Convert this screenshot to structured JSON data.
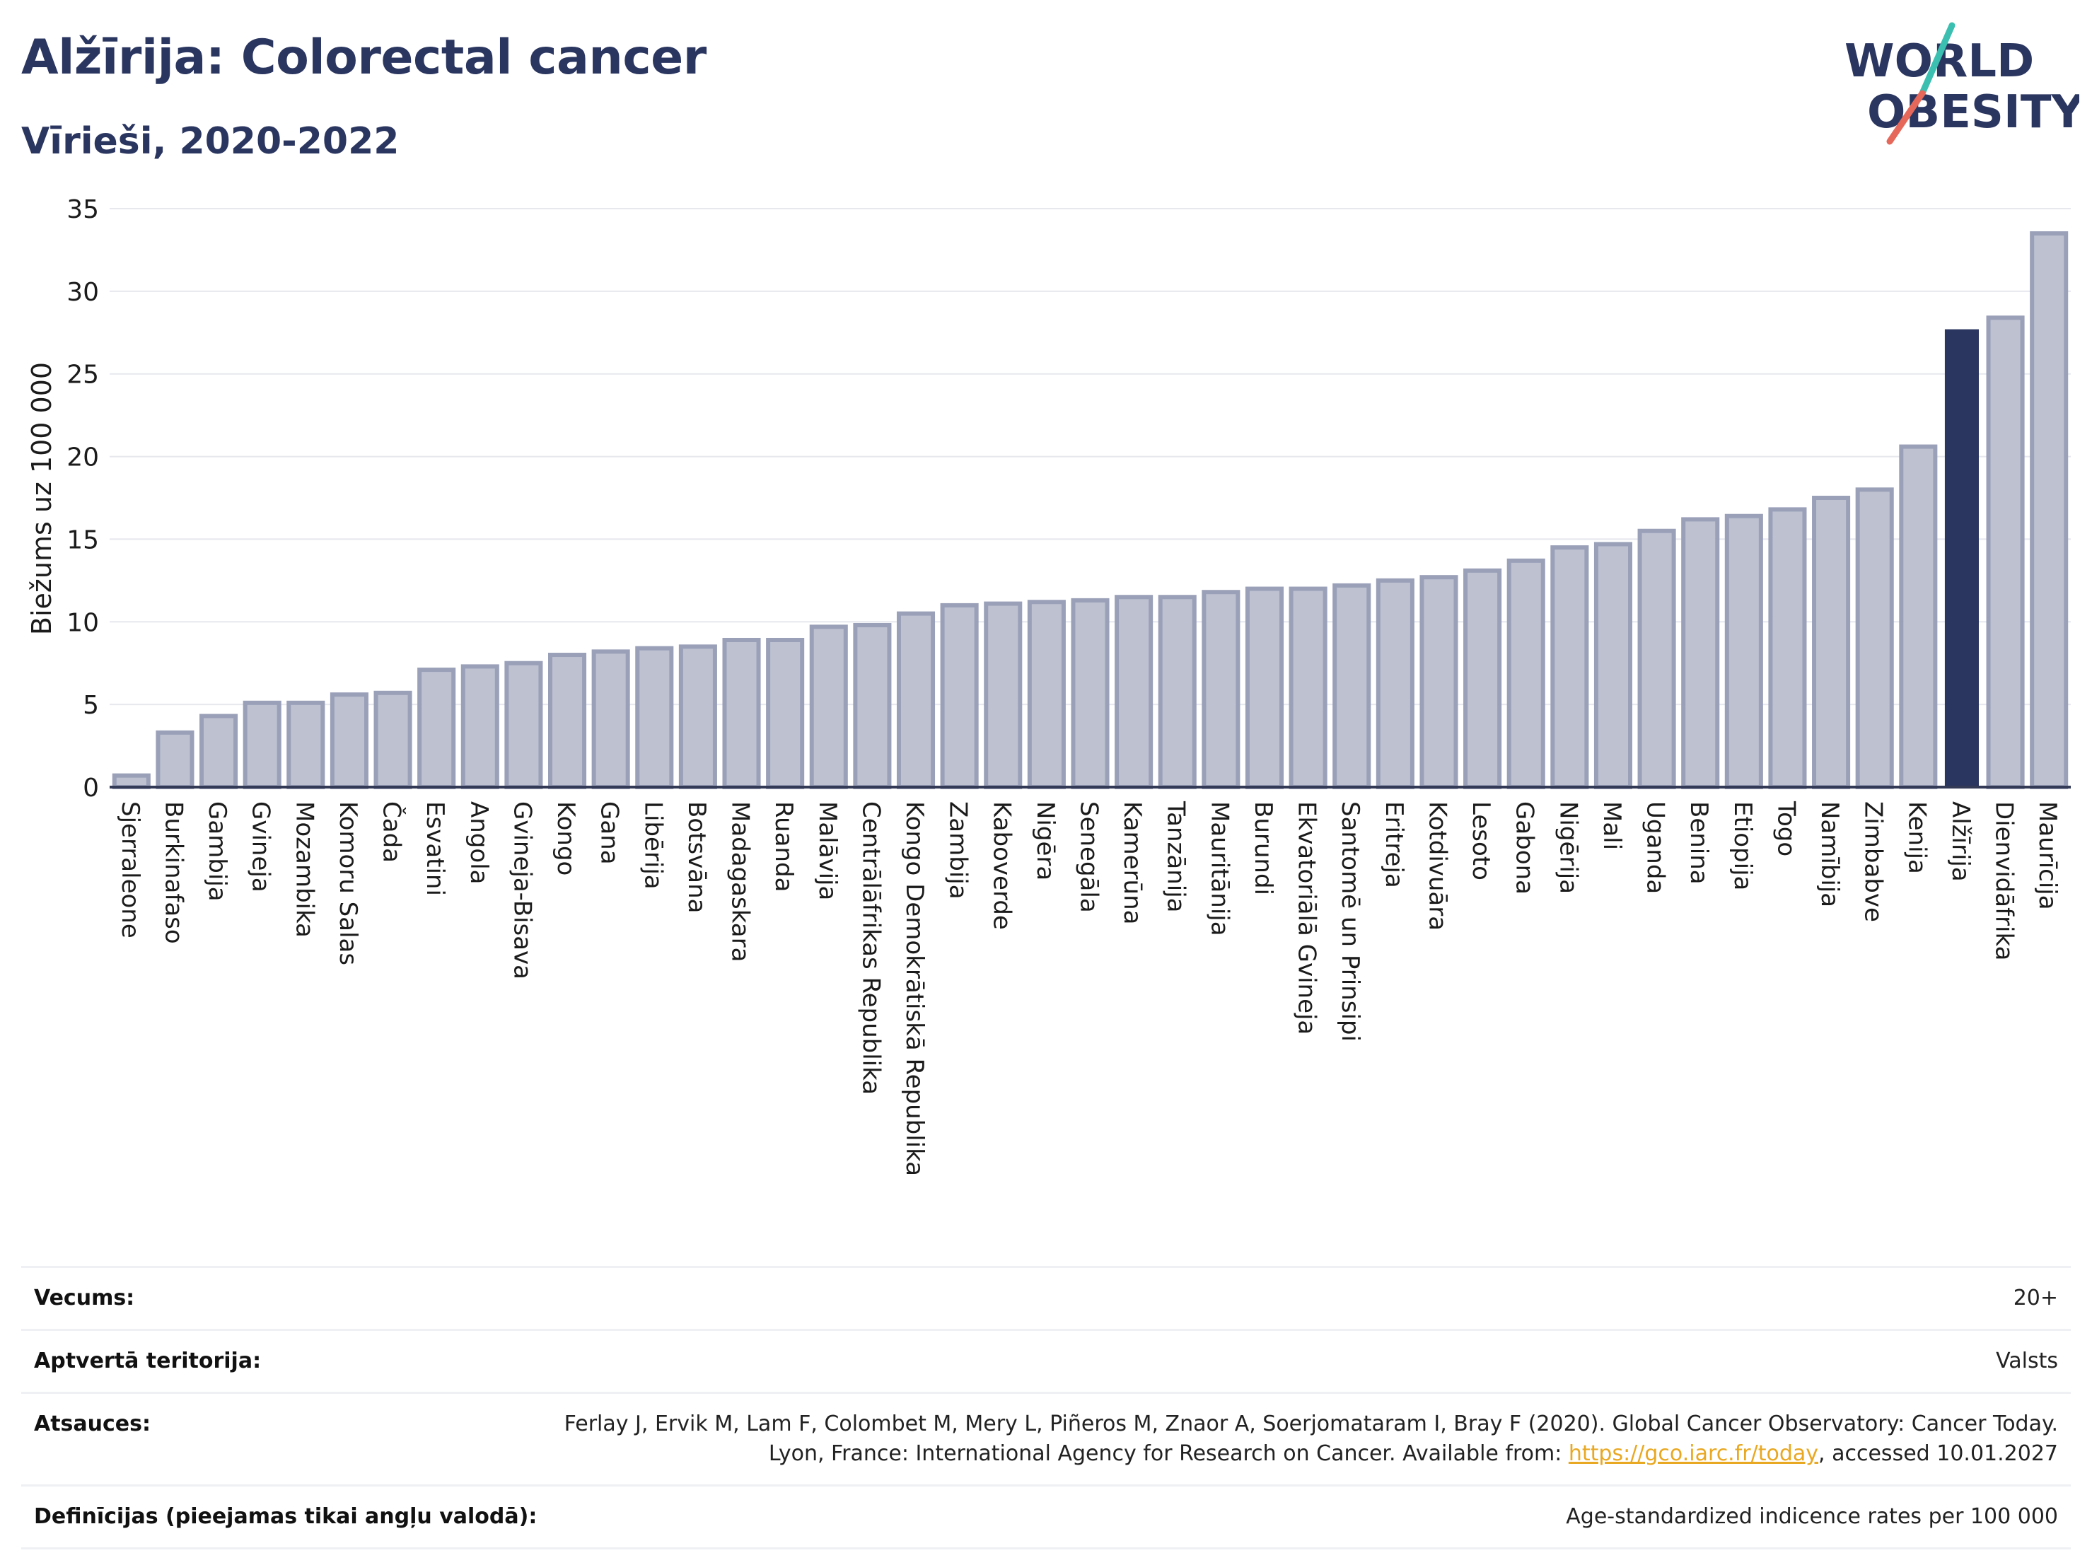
{
  "header": {
    "title": "Alžīrija: Colorectal cancer",
    "subtitle": "Vīrieši, 2020-2022"
  },
  "logo": {
    "line1": "WORLD",
    "line2": "OBESITY",
    "colors": {
      "text": "#2b3660",
      "slash_top": "#3bbfb0",
      "slash_bottom": "#e5685a"
    }
  },
  "colors": {
    "bar_fill": "#bdc1d0",
    "bar_stroke": "#9aa0b8",
    "highlight": "#2b3660",
    "grid": "#e6e8ee",
    "axis": "#333a55"
  },
  "chart_data": {
    "type": "bar",
    "ylabel": "Biežums uz 100 000",
    "ylim": [
      0,
      35
    ],
    "yticks": [
      0,
      5,
      10,
      15,
      20,
      25,
      30,
      35
    ],
    "grid": true,
    "highlight_category": "Alžīrija",
    "categories": [
      "Sjerraleone",
      "Burkinafaso",
      "Gambija",
      "Gvineja",
      "Mozambika",
      "Komoru Salas",
      "Čada",
      "Esvatini",
      "Angola",
      "Gvineja-Bisava",
      "Kongo",
      "Gana",
      "Libērija",
      "Botsvāna",
      "Madagaskara",
      "Ruanda",
      "Malāvija",
      "Centrālāfrikas Republika",
      "Kongo Demokrātiskā Republika",
      "Zambija",
      "Kaboverde",
      "Nigēra",
      "Senegāla",
      "Kamerūna",
      "Tanzānija",
      "Mauritānija",
      "Burundi",
      "Ekvatoriālā Gvineja",
      "Santomē un Prinsipi",
      "Eritreja",
      "Kotdivuāra",
      "Lesoto",
      "Gabona",
      "Nigērija",
      "Mali",
      "Uganda",
      "Benina",
      "Etiopija",
      "Togo",
      "Namībija",
      "Zimbabve",
      "Kenija",
      "Alžīrija",
      "Dienvidāfrika",
      "Maurīcija"
    ],
    "values": [
      0.7,
      3.3,
      4.3,
      5.1,
      5.1,
      5.6,
      5.7,
      7.1,
      7.3,
      7.5,
      8.0,
      8.2,
      8.4,
      8.5,
      8.9,
      8.9,
      9.7,
      9.8,
      10.5,
      11.0,
      11.1,
      11.2,
      11.3,
      11.5,
      11.5,
      11.8,
      12.0,
      12.0,
      12.2,
      12.5,
      12.7,
      13.1,
      13.7,
      14.5,
      14.7,
      15.5,
      16.2,
      16.4,
      16.8,
      17.5,
      18.0,
      20.6,
      27.7,
      28.4,
      33.5
    ]
  },
  "meta": {
    "age_label": "Vecums:",
    "age_value": "20+",
    "coverage_label": "Aptvertā teritorija:",
    "coverage_value": "Valsts",
    "refs_label": "Atsauces:",
    "refs_text_before": "Ferlay J, Ervik M, Lam F, Colombet M, Mery L, Piñeros M, Znaor A, Soerjomataram I, Bray F (2020). Global Cancer Observatory: Cancer Today. Lyon, France: International Agency for Research on Cancer. Available from: ",
    "refs_link": "https://gco.iarc.fr/today",
    "refs_text_after": ", accessed 10.01.2027",
    "definitions_label": "Definīcijas (pieejamas tikai angļu valodā):",
    "definitions_value": "Age-standardized indicence rates per 100 000"
  }
}
